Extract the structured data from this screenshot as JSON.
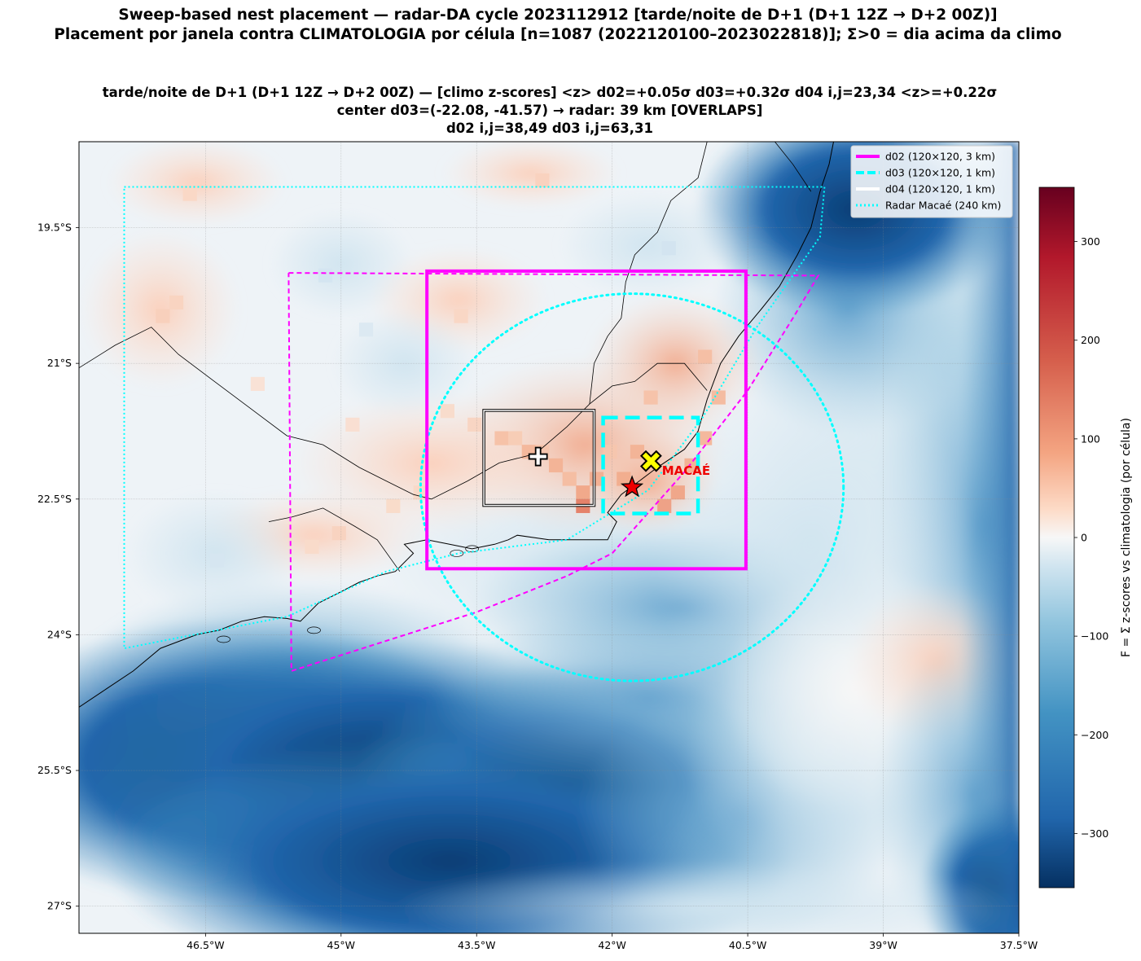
{
  "title": {
    "line1": "Sweep-based nest placement — radar-DA cycle 2023112912  [tarde/noite de D+1 (D+1 12Z → D+2 00Z)]",
    "line2": "Placement por janela contra CLIMATOLOGIA por célula [n=1087  (2022120100–2023022818)]; Σ>0 = dia acima da climo"
  },
  "axes_title": {
    "line1": "tarde/noite de D+1 (D+1 12Z → D+2 00Z)   —   [climo z-scores]   <z> d02=+0.05σ   d03=+0.32σ   d04 i,j=23,34  <z>=+0.22σ",
    "line2": "center d03=(-22.08, -41.57)   → radar: 39 km  [OVERLAPS]",
    "line3": "d02 i,j=38,49    d03 i,j=63,31"
  },
  "chart_data": {
    "type": "heatmap",
    "projection": "PlateCarree",
    "xlim": [
      -47.9,
      -37.5
    ],
    "ylim": [
      -27.3,
      -18.55
    ],
    "x_ticks": [
      -46.5,
      -45,
      -43.5,
      -42,
      -40.5,
      -39,
      -37.5
    ],
    "x_tick_labels": [
      "46.5°W",
      "45°W",
      "43.5°W",
      "42°W",
      "40.5°W",
      "39°W",
      "37.5°W"
    ],
    "y_ticks": [
      -19.5,
      -21,
      -22.5,
      -24,
      -25.5,
      -27
    ],
    "y_tick_labels": [
      "19.5°S",
      "21°S",
      "22.5°S",
      "24°S",
      "25.5°S",
      "27°S"
    ],
    "grid": true,
    "colormap": "RdBu_r",
    "colorbar": {
      "label": "F = Σ z-scores vs climatologia (por célula)",
      "range": [
        -355,
        355
      ],
      "ticks": [
        300,
        200,
        100,
        0,
        -100,
        -200,
        -300
      ],
      "tick_labels": [
        "300",
        "200",
        "100",
        "0",
        "−100",
        "−200",
        "−300"
      ]
    },
    "field_features": [
      {
        "name": "land warm anomaly",
        "lon": -42.3,
        "lat": -21.8,
        "value": 80
      },
      {
        "name": "offshore negative minimum",
        "lon": -44.7,
        "lat": -25.4,
        "value": -340
      },
      {
        "name": "offshore weak positive patch",
        "lon": -38.4,
        "lat": -24.3,
        "value": 30
      }
    ],
    "legend": {
      "position": "upper right",
      "entries": [
        {
          "label": "d02 (120×120, 3 km)",
          "color": "#ff00ff",
          "style": "solid"
        },
        {
          "label": "d03 (120×120, 1 km)",
          "color": "#00ffff",
          "style": "dashed"
        },
        {
          "label": "d04 (120×120, 1 km)",
          "color": "#ffffff",
          "style": "solid"
        },
        {
          "label": "Radar Macaé (240 km)",
          "color": "#00ffff",
          "style": "dotted"
        }
      ]
    },
    "domains": {
      "d02": {
        "lon": [
          -44.05,
          -40.52
        ],
        "lat": [
          -23.27
        ],
        "lat_range": [
          -23.27,
          -19.98
        ]
      },
      "d03": {
        "lon_range": [
          -42.1,
          -41.05
        ],
        "lat_range": [
          -22.66,
          -21.6
        ]
      },
      "d04": {
        "lon_range": [
          -43.42,
          -42.2
        ],
        "lat_range": [
          -22.57,
          -21.52
        ]
      }
    },
    "outer_boundaries": [
      {
        "name": "parent-domain boundary",
        "color": "#ff00ff",
        "style": "dashed",
        "points": [
          [
            -45.58,
            -20.0
          ],
          [
            -39.72,
            -20.03
          ],
          [
            -40.0,
            -20.5
          ],
          [
            -40.5,
            -21.3
          ],
          [
            -41.2,
            -22.2
          ],
          [
            -42.0,
            -23.1
          ],
          [
            -42.5,
            -23.35
          ],
          [
            -43.5,
            -23.75
          ],
          [
            -45.55,
            -24.4
          ],
          [
            -45.58,
            -20.0
          ]
        ]
      },
      {
        "name": "radar coverage limit",
        "color": "#00ffff",
        "style": "dotted",
        "points": [
          [
            -47.4,
            -19.05
          ],
          [
            -39.65,
            -19.05
          ],
          [
            -39.7,
            -19.6
          ],
          [
            -40.4,
            -20.6
          ],
          [
            -41.0,
            -21.6
          ],
          [
            -41.6,
            -22.4
          ],
          [
            -42.5,
            -22.95
          ],
          [
            -43.7,
            -23.1
          ],
          [
            -44.5,
            -23.3
          ],
          [
            -45.6,
            -23.8
          ],
          [
            -47.4,
            -24.15
          ],
          [
            -47.4,
            -19.05
          ]
        ]
      }
    ],
    "radar_ring": {
      "center_lon": -41.78,
      "center_lat": -22.37,
      "radius_km": 240,
      "rx_deg": 2.34,
      "ry_deg": 2.14
    },
    "markers": [
      {
        "name": "radar",
        "lon": -41.78,
        "lat": -22.37,
        "symbol": "star",
        "color": "#ee0000"
      },
      {
        "name": "d03 center",
        "lon": -41.57,
        "lat": -22.08,
        "symbol": "X",
        "color": "#ffff00"
      },
      {
        "name": "d04 center",
        "lon": -42.82,
        "lat": -22.03,
        "symbol": "plus",
        "color": "#ffffff"
      }
    ],
    "annotations": [
      {
        "text": "MACAÉ",
        "lon": -41.45,
        "lat": -22.18
      }
    ]
  }
}
